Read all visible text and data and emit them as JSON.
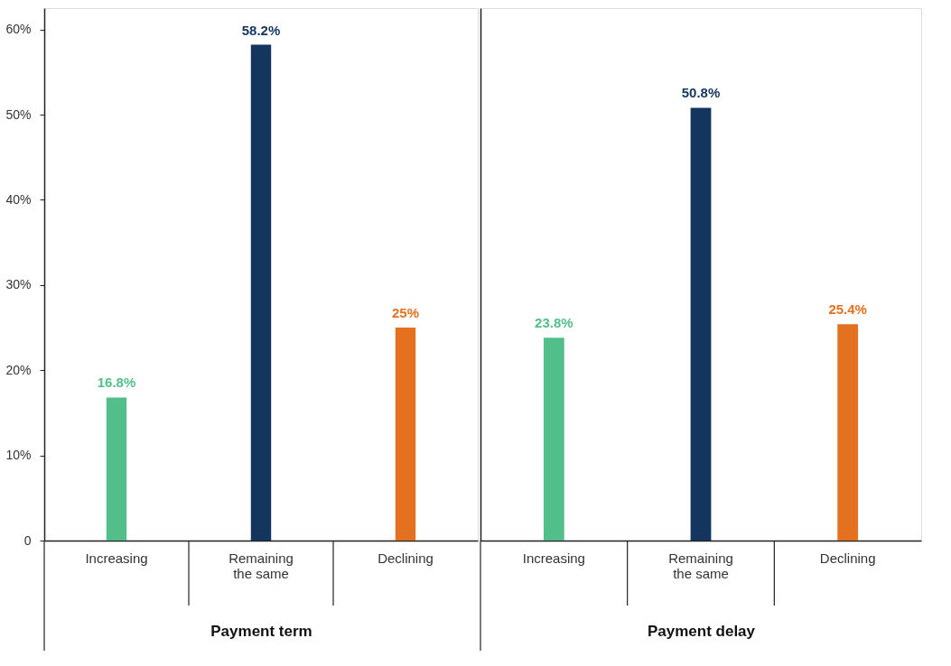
{
  "chart_data": [
    {
      "type": "bar",
      "xlabel": "Payment term",
      "categories": [
        "Increasing",
        "Remaining the same",
        "Declining"
      ],
      "values": [
        16.8,
        58.2,
        25
      ],
      "colors": [
        "#52bf8a",
        "#14365e",
        "#e4711f"
      ],
      "value_labels": [
        "16.8%",
        "58.2%",
        "25%"
      ],
      "ylim": [
        0,
        62.5
      ],
      "yticks": [
        {
          "value": 0,
          "label": "0"
        },
        {
          "value": 10,
          "label": "10%"
        },
        {
          "value": 20,
          "label": "20%"
        },
        {
          "value": 30,
          "label": "30%"
        },
        {
          "value": 40,
          "label": "40%"
        },
        {
          "value": 50,
          "label": "50%"
        },
        {
          "value": 60,
          "label": "60%"
        }
      ],
      "grid": false
    },
    {
      "type": "bar",
      "xlabel": "Payment delay",
      "categories": [
        "Increasing",
        "Remaining the same",
        "Declining"
      ],
      "values": [
        23.8,
        50.8,
        25.4
      ],
      "colors": [
        "#52bf8a",
        "#14365e",
        "#e4711f"
      ],
      "value_labels": [
        "23.8%",
        "50.8%",
        "25.4%"
      ],
      "ylim": [
        0,
        62.5
      ],
      "tick_labels": "x",
      "grid": false
    }
  ]
}
